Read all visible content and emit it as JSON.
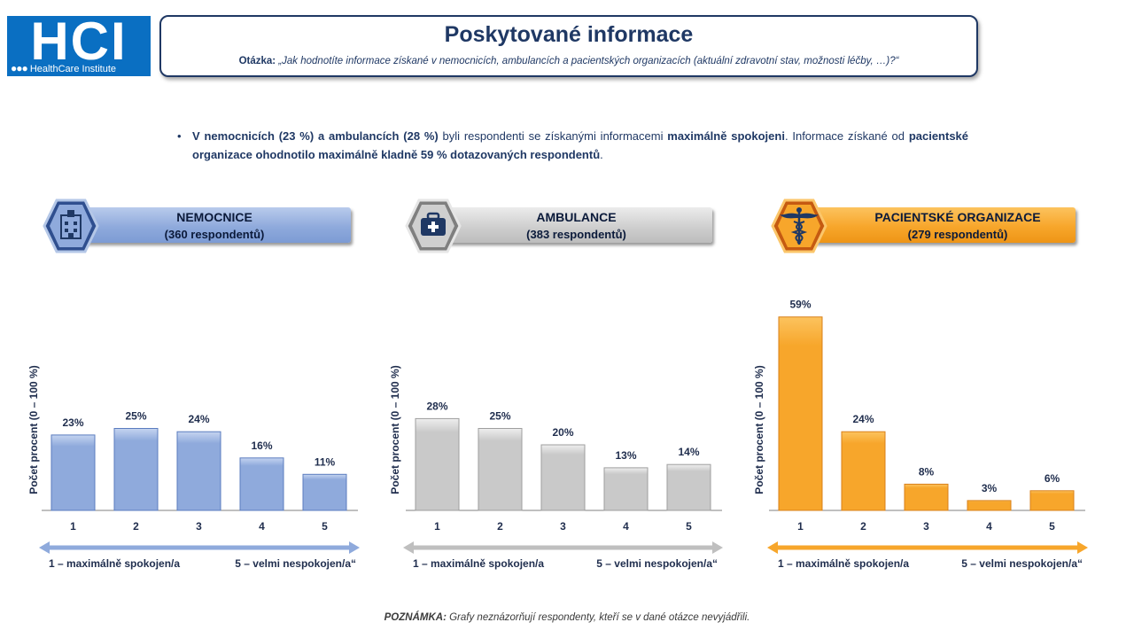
{
  "logo": {
    "main": "HCI",
    "dots": "●●●",
    "sub": "HealthCare Institute"
  },
  "header": {
    "title": "Poskytované informace",
    "question_label": "Otázka:",
    "question_text": "„Jak hodnotíte informace získané v nemocnicích, ambulancích a pacientských organizacích (aktuální zdravotní stav, možnosti léčby, …)?“"
  },
  "summary": {
    "bullet": "•",
    "parts": [
      {
        "text": "V nemocnicích (23 %) a ambulancích (28 %)",
        "bold": true
      },
      {
        "text": " byli respondenti se získanými informacemi ",
        "bold": false
      },
      {
        "text": "maximálně spokojeni",
        "bold": true
      },
      {
        "text": ". Informace získané od ",
        "bold": false
      },
      {
        "text": "pacientské organizace ohodnotilo maximálně kladně 59 % dotazovaných respondentů",
        "bold": true
      },
      {
        "text": ".",
        "bold": false
      }
    ]
  },
  "panels": [
    {
      "title": "NEMOCNICE",
      "subtitle": "(360 respondentů)",
      "icon": "hospital-icon",
      "color": "#8faadc",
      "dark": "#2f4f8f",
      "light": "#b4c7e7"
    },
    {
      "title": "AMBULANCE",
      "subtitle": "(383 respondentů)",
      "icon": "first-aid-kit-icon",
      "color": "#c9c9c9",
      "dark": "#7f7f7f",
      "light": "#e6e6e6"
    },
    {
      "title": "PACIENTSKÉ ORGANIZACE",
      "subtitle": "(279 respondentů)",
      "icon": "caduceus-icon",
      "color": "#f7a62b",
      "dark": "#c55a11",
      "light": "#fbc66a"
    }
  ],
  "chart_data": [
    {
      "type": "bar",
      "categories": [
        "1",
        "2",
        "3",
        "4",
        "5"
      ],
      "values": [
        23,
        25,
        24,
        16,
        11
      ],
      "labels": [
        "23%",
        "25%",
        "24%",
        "16%",
        "11%"
      ],
      "ylabel": "Počet procent  (0 – 100 %)",
      "ylim": [
        0,
        65
      ],
      "scale_left": "1 – maximálně spokojen/a",
      "scale_right": "5 – velmi nespokojen/a“",
      "color": "#8faadc"
    },
    {
      "type": "bar",
      "categories": [
        "1",
        "2",
        "3",
        "4",
        "5"
      ],
      "values": [
        28,
        25,
        20,
        13,
        14
      ],
      "labels": [
        "28%",
        "25%",
        "20%",
        "13%",
        "14%"
      ],
      "ylabel": "Počet procent  (0 – 100 %)",
      "ylim": [
        0,
        65
      ],
      "scale_left": "1 – maximálně spokojen/a",
      "scale_right": "5 – velmi nespokojen/a“",
      "color": "#c9c9c9"
    },
    {
      "type": "bar",
      "categories": [
        "1",
        "2",
        "3",
        "4",
        "5"
      ],
      "values": [
        59,
        24,
        8,
        3,
        6
      ],
      "labels": [
        "59%",
        "24%",
        "8%",
        "3%",
        "6%"
      ],
      "ylabel": "Počet procent  (0 – 100 %)",
      "ylim": [
        0,
        65
      ],
      "scale_left": "1 – maximálně spokojen/a",
      "scale_right": "5 – velmi nespokojen/a“",
      "color": "#f7a62b"
    }
  ],
  "note": {
    "label": "POZNÁMKA:",
    "text": " Grafy neznázorňují respondenty, kteří se v dané otázce nevyjádřili."
  }
}
